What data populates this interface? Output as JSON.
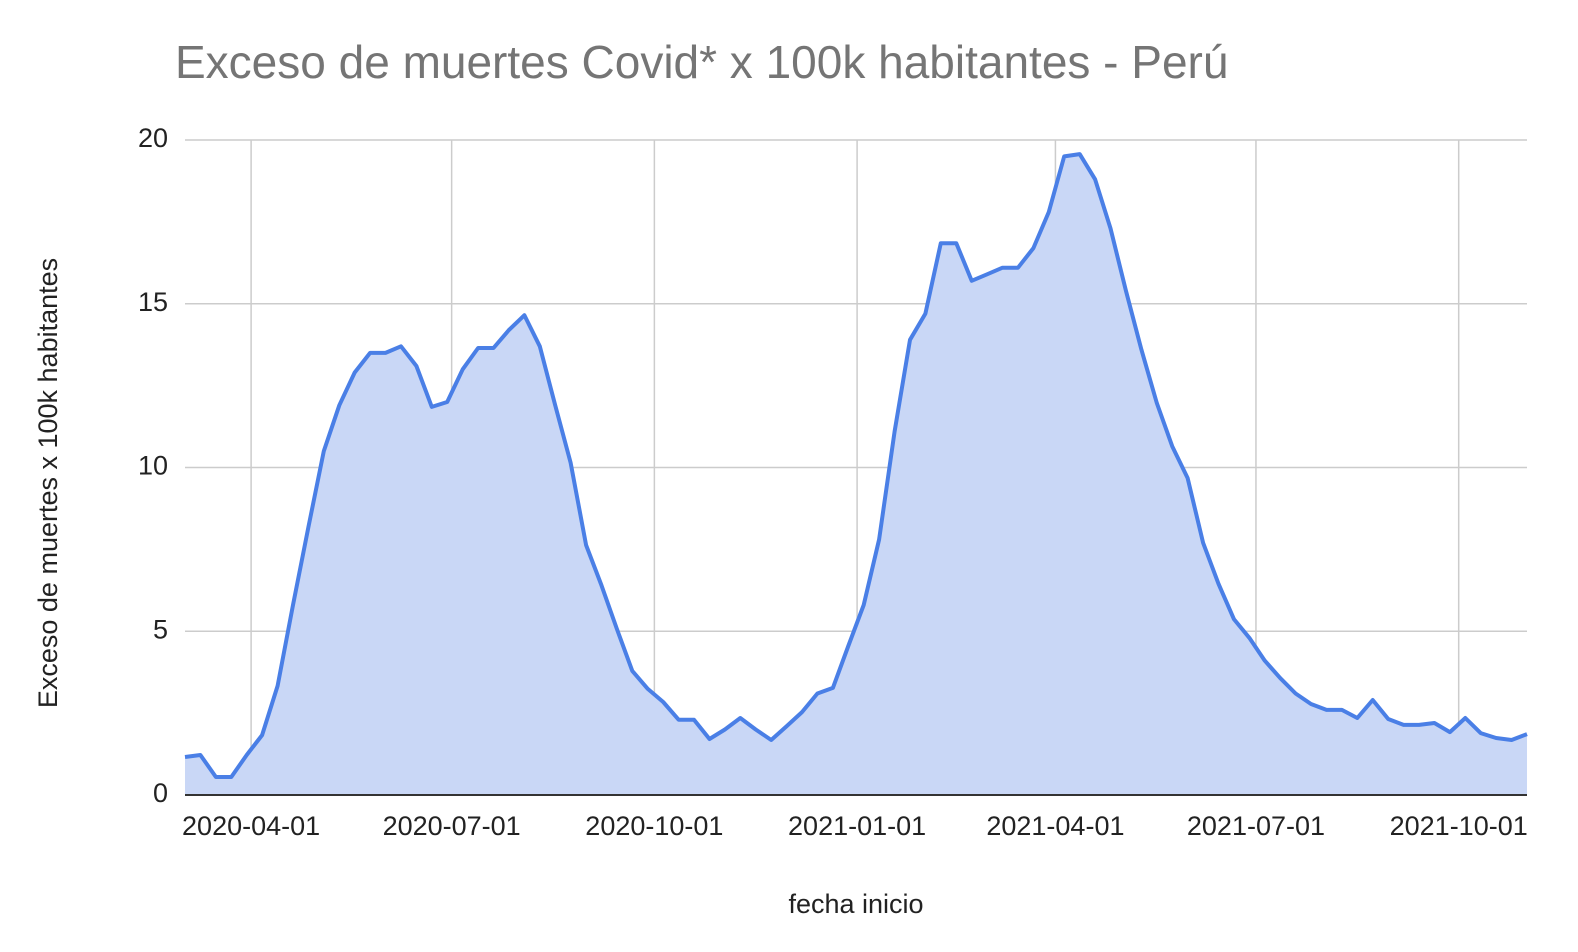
{
  "chart_data": {
    "type": "area",
    "title": "Exceso de muertes Covid* x 100k habitantes - Perú",
    "x_label": "fecha inicio",
    "y_label": "Exceso de muertes x 100k habitantes",
    "x": [
      "2020-03-02",
      "2020-03-09",
      "2020-03-16",
      "2020-03-23",
      "2020-03-30",
      "2020-04-06",
      "2020-04-13",
      "2020-04-20",
      "2020-04-27",
      "2020-05-04",
      "2020-05-11",
      "2020-05-18",
      "2020-05-25",
      "2020-06-01",
      "2020-06-08",
      "2020-06-15",
      "2020-06-22",
      "2020-06-29",
      "2020-07-06",
      "2020-07-13",
      "2020-07-20",
      "2020-07-27",
      "2020-08-03",
      "2020-08-10",
      "2020-08-17",
      "2020-08-24",
      "2020-08-31",
      "2020-09-07",
      "2020-09-14",
      "2020-09-21",
      "2020-09-28",
      "2020-10-05",
      "2020-10-12",
      "2020-10-19",
      "2020-10-26",
      "2020-11-02",
      "2020-11-09",
      "2020-11-16",
      "2020-11-23",
      "2020-11-30",
      "2020-12-07",
      "2020-12-14",
      "2020-12-21",
      "2020-12-28",
      "2021-01-04",
      "2021-01-11",
      "2021-01-18",
      "2021-01-25",
      "2021-02-01",
      "2021-02-08",
      "2021-02-15",
      "2021-02-22",
      "2021-03-01",
      "2021-03-08",
      "2021-03-15",
      "2021-03-22",
      "2021-03-29",
      "2021-04-05",
      "2021-04-12",
      "2021-04-19",
      "2021-04-26",
      "2021-05-03",
      "2021-05-10",
      "2021-05-17",
      "2021-05-24",
      "2021-05-31",
      "2021-06-07",
      "2021-06-14",
      "2021-06-21",
      "2021-06-28",
      "2021-07-05",
      "2021-07-12",
      "2021-07-19",
      "2021-07-26",
      "2021-08-02",
      "2021-08-09",
      "2021-08-16",
      "2021-08-23",
      "2021-08-30",
      "2021-09-06",
      "2021-09-13",
      "2021-09-20",
      "2021-09-27",
      "2021-10-04",
      "2021-10-11",
      "2021-10-18",
      "2021-10-25",
      "2021-11-01"
    ],
    "series": [
      {
        "name": "Exceso de muertes x 100k habitantes",
        "color": "#4a7fe6",
        "fill": "#c9d7f6",
        "values": [
          1.16,
          1.22,
          0.55,
          0.55,
          1.22,
          1.83,
          3.33,
          5.8,
          8.18,
          10.5,
          11.9,
          12.9,
          13.5,
          13.5,
          13.7,
          13.1,
          11.85,
          12.0,
          13.0,
          13.65,
          13.65,
          14.2,
          14.65,
          13.7,
          11.9,
          10.15,
          7.63,
          6.4,
          5.07,
          3.79,
          3.24,
          2.84,
          2.3,
          2.3,
          1.71,
          2.0,
          2.35,
          2.0,
          1.68,
          2.1,
          2.53,
          3.1,
          3.27,
          4.55,
          5.8,
          7.8,
          11.1,
          13.9,
          14.7,
          16.85,
          16.85,
          15.7,
          15.9,
          16.1,
          16.1,
          16.7,
          17.8,
          19.5,
          19.57,
          18.8,
          17.3,
          15.4,
          13.6,
          11.97,
          10.65,
          9.68,
          7.7,
          6.45,
          5.37,
          4.8,
          4.1,
          3.57,
          3.1,
          2.78,
          2.6,
          2.6,
          2.35,
          2.9,
          2.32,
          2.14,
          2.14,
          2.2,
          1.92,
          2.35,
          1.89,
          1.74,
          1.68,
          1.86
        ]
      }
    ],
    "xlim": [
      "2020-03-02",
      "2021-11-01"
    ],
    "xticks": [
      "2020-04-01",
      "2020-07-01",
      "2020-10-01",
      "2021-01-01",
      "2021-04-01",
      "2021-07-01",
      "2021-10-01"
    ],
    "ylim": [
      0,
      20
    ],
    "yticks": [
      0,
      5,
      10,
      15,
      20
    ],
    "grid": true
  }
}
